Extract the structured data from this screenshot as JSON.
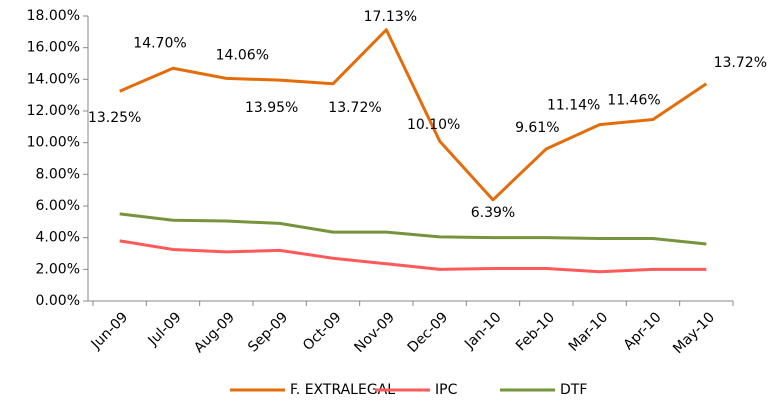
{
  "chart_data": {
    "type": "line",
    "categories": [
      "Jun-09",
      "Jul-09",
      "Aug-09",
      "Sep-09",
      "Oct-09",
      "Nov-09",
      "Dec-09",
      "Jan-10",
      "Feb-10",
      "Mar-10",
      "Apr-10",
      "May-10"
    ],
    "series": [
      {
        "name": "F. EXTRALEGAL",
        "color": "#e46c0a",
        "values": [
          13.25,
          14.7,
          14.06,
          13.95,
          13.72,
          17.13,
          10.1,
          6.39,
          9.61,
          11.14,
          11.46,
          13.72
        ],
        "value_labels": [
          "13.25%",
          "14.70%",
          "14.06%",
          "13.95%",
          "13.72%",
          "17.13%",
          "10.10%",
          "6.39%",
          "9.61%",
          "11.14%",
          "11.46%",
          "13.72%"
        ]
      },
      {
        "name": "IPC",
        "color": "#ff5a5a",
        "values": [
          3.8,
          3.25,
          3.1,
          3.2,
          2.7,
          2.35,
          2.0,
          2.05,
          2.05,
          1.85,
          2.0,
          2.0
        ]
      },
      {
        "name": "DTF",
        "color": "#77933c",
        "values": [
          5.5,
          5.1,
          5.05,
          4.9,
          4.35,
          4.35,
          4.05,
          4.0,
          4.0,
          3.95,
          3.95,
          3.6
        ]
      }
    ],
    "ylim": [
      0,
      18
    ],
    "yticks": [
      {
        "value": 0,
        "label": "0.00%"
      },
      {
        "value": 2,
        "label": "2.00%"
      },
      {
        "value": 4,
        "label": "4.00%"
      },
      {
        "value": 6,
        "label": "6.00%"
      },
      {
        "value": 8,
        "label": "8.00%"
      },
      {
        "value": 10,
        "label": "10.00%"
      },
      {
        "value": 12,
        "label": "12.00%"
      },
      {
        "value": 14,
        "label": "14.00%"
      },
      {
        "value": 16,
        "label": "16.00%"
      },
      {
        "value": 18,
        "label": "18.00%"
      }
    ],
    "grid": false,
    "legend": "bottom"
  }
}
